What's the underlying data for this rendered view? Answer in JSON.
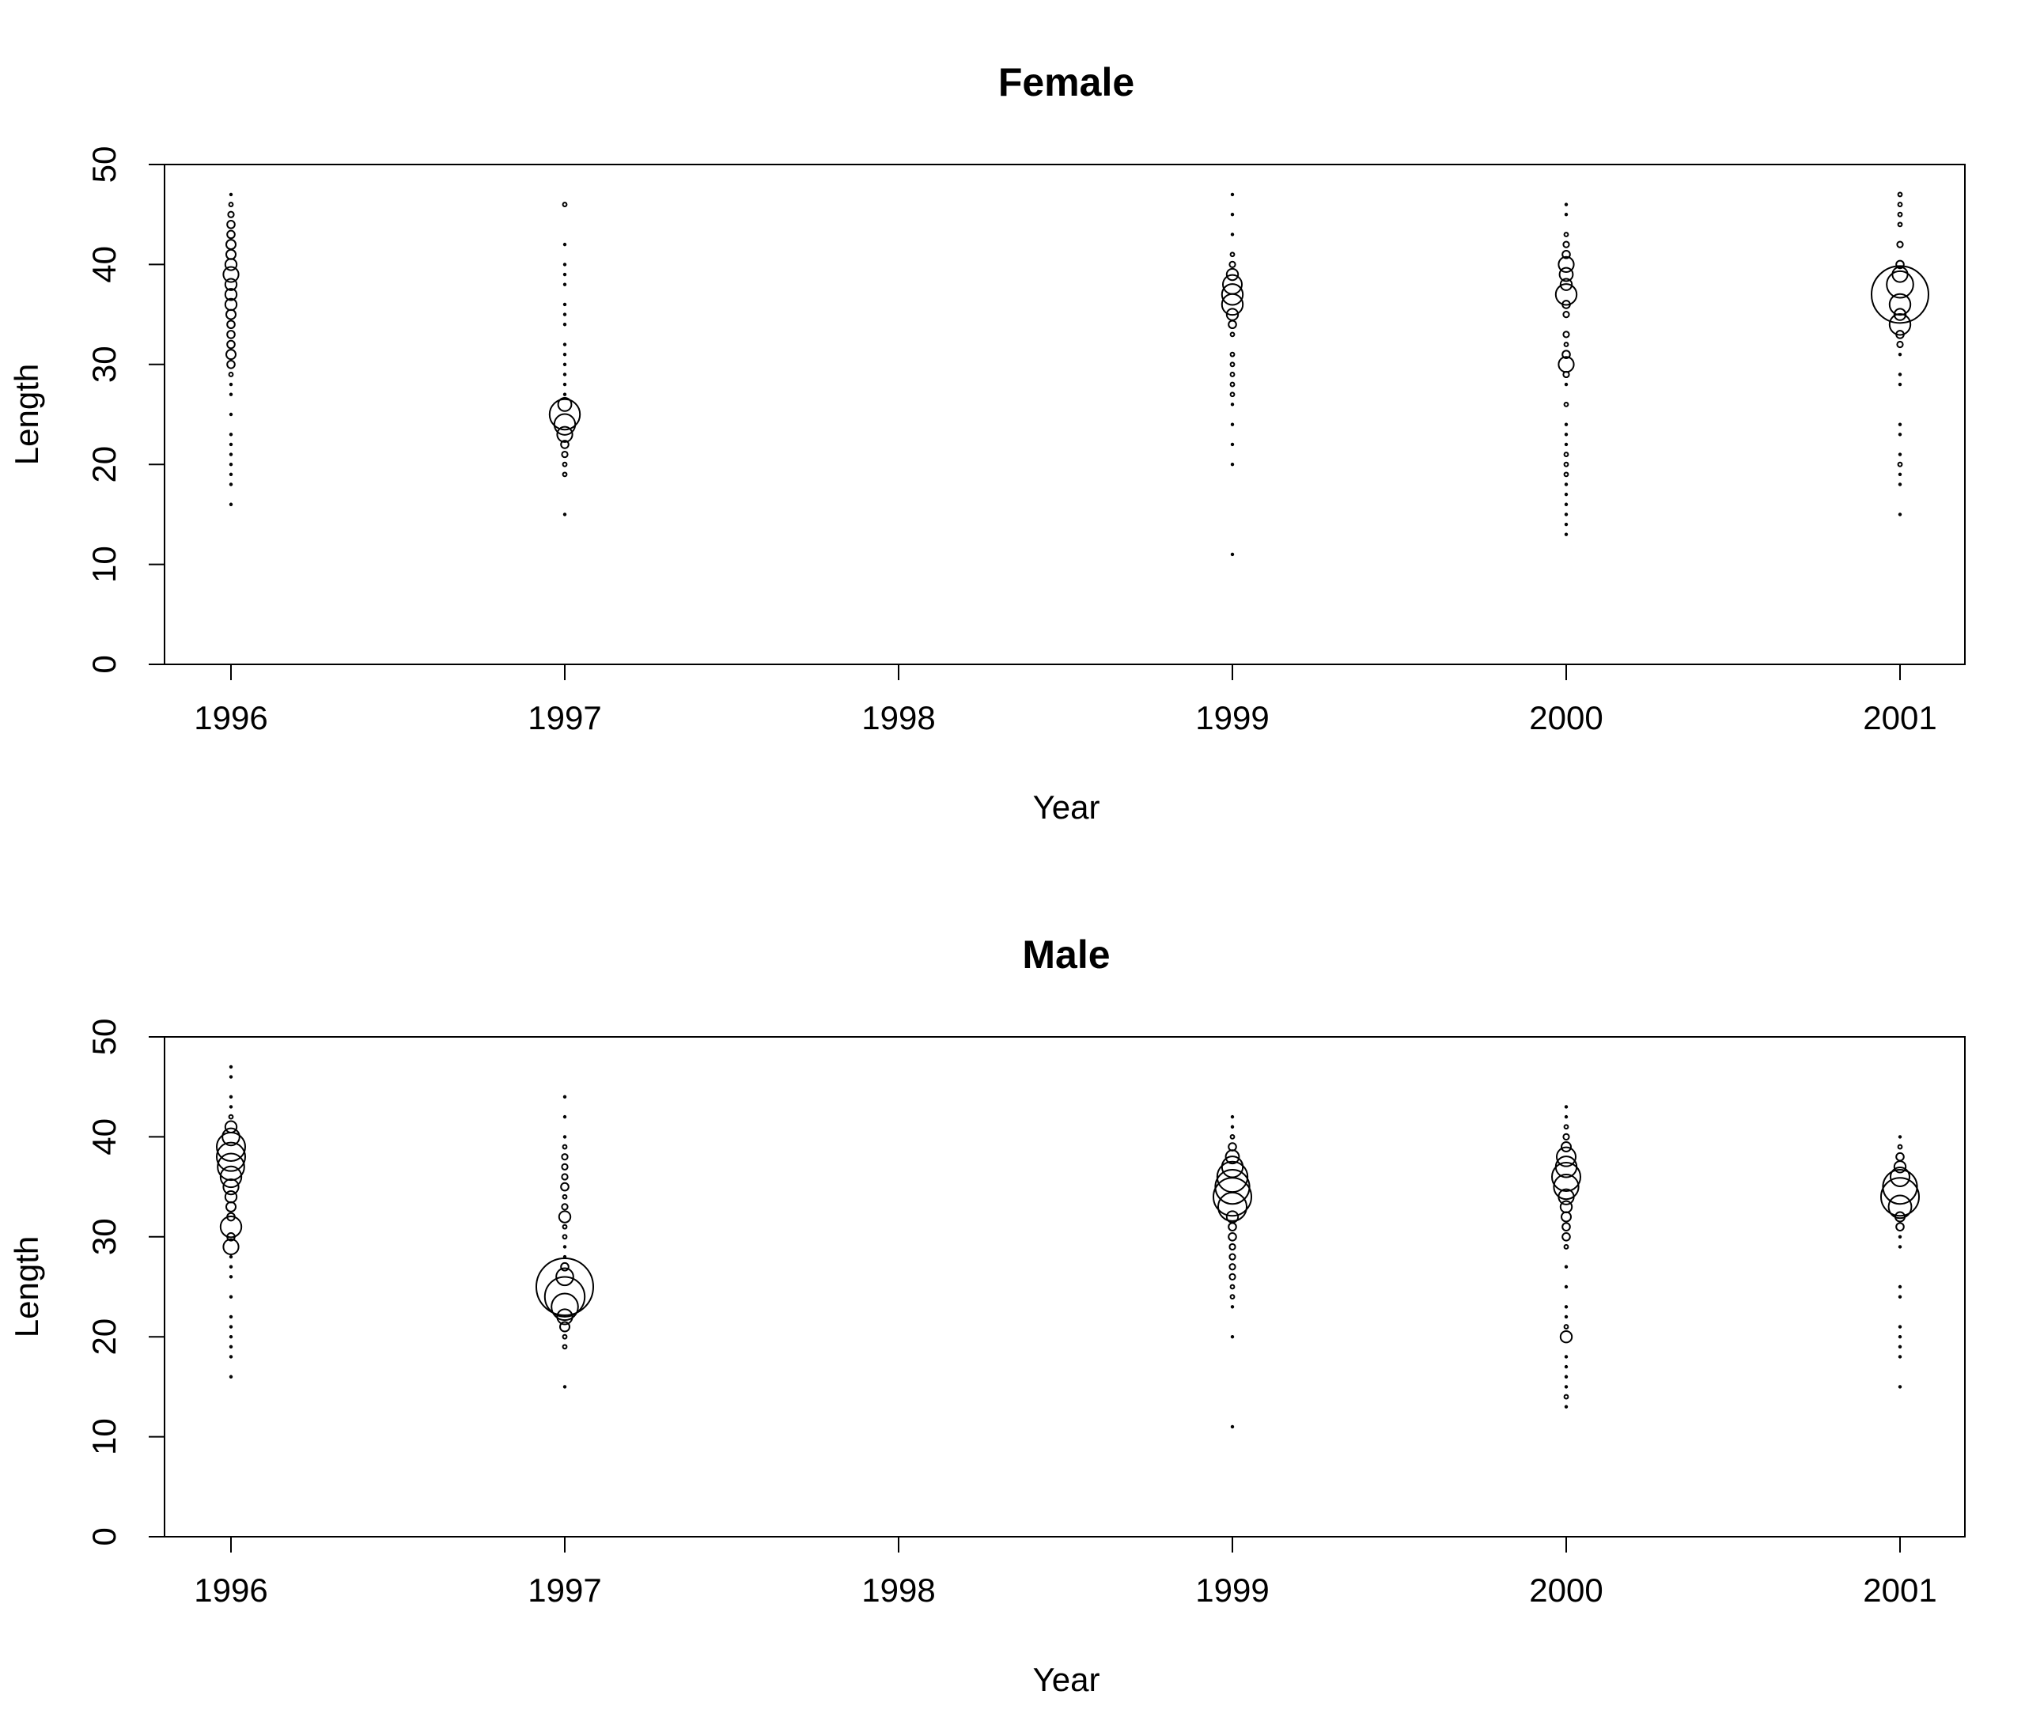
{
  "chart_data": [
    {
      "type": "scatter",
      "title": "Female",
      "xlabel": "Year",
      "ylabel": "Length",
      "categories": [
        "1996",
        "1997",
        "1998",
        "1999",
        "2000",
        "2001"
      ],
      "ylim": [
        0,
        50
      ],
      "yticks": [
        0,
        10,
        20,
        30,
        40,
        50
      ],
      "grid": false,
      "points": [
        {
          "year": "1996",
          "bubbles": [
            [
              16,
              0.1
            ],
            [
              18,
              0.1
            ],
            [
              19,
              0.1
            ],
            [
              20,
              0.1
            ],
            [
              21,
              0.1
            ],
            [
              22,
              0.1
            ],
            [
              23,
              0.1
            ],
            [
              25,
              0.1
            ],
            [
              27,
              0.1
            ],
            [
              28,
              0.1
            ],
            [
              29,
              0.2
            ],
            [
              30,
              0.4
            ],
            [
              31,
              0.5
            ],
            [
              32,
              0.4
            ],
            [
              33,
              0.4
            ],
            [
              34,
              0.4
            ],
            [
              35,
              0.5
            ],
            [
              36,
              0.6
            ],
            [
              37,
              0.6
            ],
            [
              38,
              0.6
            ],
            [
              39,
              0.8
            ],
            [
              40,
              0.6
            ],
            [
              41,
              0.5
            ],
            [
              42,
              0.5
            ],
            [
              43,
              0.4
            ],
            [
              44,
              0.4
            ],
            [
              45,
              0.3
            ],
            [
              46,
              0.2
            ],
            [
              47,
              0.1
            ]
          ]
        },
        {
          "year": "1997",
          "bubbles": [
            [
              15,
              0.1
            ],
            [
              19,
              0.2
            ],
            [
              20,
              0.2
            ],
            [
              21,
              0.3
            ],
            [
              22,
              0.4
            ],
            [
              23,
              0.8
            ],
            [
              24,
              1.1
            ],
            [
              25,
              1.6
            ],
            [
              26,
              0.7
            ],
            [
              27,
              0.1
            ],
            [
              28,
              0.1
            ],
            [
              29,
              0.1
            ],
            [
              30,
              0.1
            ],
            [
              31,
              0.1
            ],
            [
              32,
              0.1
            ],
            [
              34,
              0.1
            ],
            [
              35,
              0.1
            ],
            [
              36,
              0.1
            ],
            [
              38,
              0.1
            ],
            [
              39,
              0.1
            ],
            [
              40,
              0.1
            ],
            [
              42,
              0.1
            ],
            [
              46,
              0.2
            ]
          ]
        },
        {
          "year": "1999",
          "bubbles": [
            [
              11,
              0.1
            ],
            [
              20,
              0.1
            ],
            [
              22,
              0.1
            ],
            [
              24,
              0.1
            ],
            [
              26,
              0.1
            ],
            [
              27,
              0.2
            ],
            [
              28,
              0.2
            ],
            [
              29,
              0.2
            ],
            [
              30,
              0.2
            ],
            [
              31,
              0.2
            ],
            [
              33,
              0.2
            ],
            [
              34,
              0.4
            ],
            [
              35,
              0.6
            ],
            [
              36,
              1.1
            ],
            [
              37,
              1.1
            ],
            [
              38,
              1.0
            ],
            [
              39,
              0.6
            ],
            [
              40,
              0.3
            ],
            [
              41,
              0.2
            ],
            [
              43,
              0.1
            ],
            [
              45,
              0.1
            ],
            [
              47,
              0.1
            ]
          ]
        },
        {
          "year": "2000",
          "bubbles": [
            [
              13,
              0.1
            ],
            [
              14,
              0.1
            ],
            [
              15,
              0.1
            ],
            [
              16,
              0.1
            ],
            [
              17,
              0.1
            ],
            [
              18,
              0.1
            ],
            [
              19,
              0.2
            ],
            [
              20,
              0.2
            ],
            [
              21,
              0.2
            ],
            [
              22,
              0.1
            ],
            [
              23,
              0.1
            ],
            [
              24,
              0.1
            ],
            [
              26,
              0.2
            ],
            [
              28,
              0.1
            ],
            [
              29,
              0.3
            ],
            [
              30,
              0.8
            ],
            [
              31,
              0.4
            ],
            [
              32,
              0.2
            ],
            [
              33,
              0.3
            ],
            [
              35,
              0.3
            ],
            [
              36,
              0.4
            ],
            [
              37,
              1.1
            ],
            [
              38,
              0.6
            ],
            [
              39,
              0.7
            ],
            [
              40,
              0.8
            ],
            [
              41,
              0.4
            ],
            [
              42,
              0.3
            ],
            [
              43,
              0.2
            ],
            [
              45,
              0.1
            ],
            [
              46,
              0.1
            ]
          ]
        },
        {
          "year": "2001",
          "bubbles": [
            [
              15,
              0.1
            ],
            [
              18,
              0.1
            ],
            [
              19,
              0.1
            ],
            [
              20,
              0.2
            ],
            [
              21,
              0.1
            ],
            [
              23,
              0.1
            ],
            [
              24,
              0.1
            ],
            [
              28,
              0.1
            ],
            [
              29,
              0.1
            ],
            [
              31,
              0.1
            ],
            [
              32,
              0.3
            ],
            [
              33,
              0.4
            ],
            [
              34,
              1.1
            ],
            [
              35,
              0.6
            ],
            [
              36,
              1.1
            ],
            [
              37,
              3.0
            ],
            [
              38,
              1.4
            ],
            [
              39,
              0.8
            ],
            [
              40,
              0.4
            ],
            [
              42,
              0.3
            ],
            [
              44,
              0.2
            ],
            [
              45,
              0.2
            ],
            [
              46,
              0.2
            ],
            [
              47,
              0.2
            ]
          ]
        }
      ]
    },
    {
      "type": "scatter",
      "title": "Male",
      "xlabel": "Year",
      "ylabel": "Length",
      "categories": [
        "1996",
        "1997",
        "1998",
        "1999",
        "2000",
        "2001"
      ],
      "ylim": [
        0,
        50
      ],
      "yticks": [
        0,
        10,
        20,
        30,
        40,
        50
      ],
      "grid": false,
      "points": [
        {
          "year": "1996",
          "bubbles": [
            [
              16,
              0.1
            ],
            [
              18,
              0.1
            ],
            [
              19,
              0.1
            ],
            [
              20,
              0.1
            ],
            [
              21,
              0.1
            ],
            [
              22,
              0.1
            ],
            [
              24,
              0.1
            ],
            [
              26,
              0.1
            ],
            [
              27,
              0.1
            ],
            [
              28,
              0.1
            ],
            [
              29,
              0.8
            ],
            [
              30,
              0.4
            ],
            [
              31,
              1.1
            ],
            [
              32,
              0.4
            ],
            [
              33,
              0.5
            ],
            [
              34,
              0.6
            ],
            [
              35,
              0.8
            ],
            [
              36,
              1.1
            ],
            [
              37,
              1.4
            ],
            [
              38,
              1.5
            ],
            [
              39,
              1.5
            ],
            [
              40,
              0.9
            ],
            [
              41,
              0.6
            ],
            [
              42,
              0.2
            ],
            [
              43,
              0.1
            ],
            [
              44,
              0.1
            ],
            [
              46,
              0.1
            ],
            [
              47,
              0.1
            ]
          ]
        },
        {
          "year": "1997",
          "bubbles": [
            [
              15,
              0.1
            ],
            [
              19,
              0.2
            ],
            [
              20,
              0.2
            ],
            [
              21,
              0.5
            ],
            [
              22,
              0.8
            ],
            [
              23,
              1.4
            ],
            [
              24,
              2.1
            ],
            [
              25,
              3.0
            ],
            [
              26,
              0.9
            ],
            [
              27,
              0.4
            ],
            [
              28,
              0.1
            ],
            [
              29,
              0.1
            ],
            [
              30,
              0.2
            ],
            [
              31,
              0.2
            ],
            [
              32,
              0.6
            ],
            [
              33,
              0.3
            ],
            [
              34,
              0.2
            ],
            [
              35,
              0.4
            ],
            [
              36,
              0.3
            ],
            [
              37,
              0.3
            ],
            [
              38,
              0.3
            ],
            [
              39,
              0.2
            ],
            [
              40,
              0.1
            ],
            [
              42,
              0.1
            ],
            [
              44,
              0.1
            ]
          ]
        },
        {
          "year": "1999",
          "bubbles": [
            [
              11,
              0.1
            ],
            [
              20,
              0.1
            ],
            [
              23,
              0.1
            ],
            [
              24,
              0.2
            ],
            [
              25,
              0.2
            ],
            [
              26,
              0.3
            ],
            [
              27,
              0.3
            ],
            [
              28,
              0.3
            ],
            [
              29,
              0.3
            ],
            [
              30,
              0.4
            ],
            [
              31,
              0.4
            ],
            [
              32,
              0.6
            ],
            [
              33,
              1.5
            ],
            [
              34,
              2.0
            ],
            [
              35,
              1.8
            ],
            [
              36,
              1.6
            ],
            [
              37,
              1.1
            ],
            [
              38,
              0.7
            ],
            [
              39,
              0.4
            ],
            [
              40,
              0.2
            ],
            [
              41,
              0.1
            ],
            [
              42,
              0.1
            ]
          ]
        },
        {
          "year": "2000",
          "bubbles": [
            [
              13,
              0.1
            ],
            [
              14,
              0.2
            ],
            [
              15,
              0.1
            ],
            [
              16,
              0.1
            ],
            [
              17,
              0.1
            ],
            [
              18,
              0.1
            ],
            [
              20,
              0.6
            ],
            [
              21,
              0.2
            ],
            [
              22,
              0.1
            ],
            [
              23,
              0.1
            ],
            [
              25,
              0.1
            ],
            [
              27,
              0.1
            ],
            [
              29,
              0.2
            ],
            [
              30,
              0.4
            ],
            [
              31,
              0.4
            ],
            [
              32,
              0.5
            ],
            [
              33,
              0.6
            ],
            [
              34,
              0.8
            ],
            [
              35,
              1.3
            ],
            [
              36,
              1.5
            ],
            [
              37,
              1.1
            ],
            [
              38,
              1.0
            ],
            [
              39,
              0.5
            ],
            [
              40,
              0.3
            ],
            [
              41,
              0.2
            ],
            [
              42,
              0.1
            ],
            [
              43,
              0.1
            ]
          ]
        },
        {
          "year": "2001",
          "bubbles": [
            [
              15,
              0.1
            ],
            [
              18,
              0.1
            ],
            [
              19,
              0.1
            ],
            [
              20,
              0.1
            ],
            [
              21,
              0.1
            ],
            [
              24,
              0.1
            ],
            [
              25,
              0.1
            ],
            [
              29,
              0.1
            ],
            [
              30,
              0.1
            ],
            [
              31,
              0.4
            ],
            [
              32,
              0.5
            ],
            [
              33,
              1.2
            ],
            [
              34,
              2.0
            ],
            [
              35,
              1.8
            ],
            [
              36,
              1.0
            ],
            [
              37,
              0.6
            ],
            [
              38,
              0.4
            ],
            [
              39,
              0.2
            ],
            [
              40,
              0.1
            ]
          ]
        }
      ]
    }
  ]
}
